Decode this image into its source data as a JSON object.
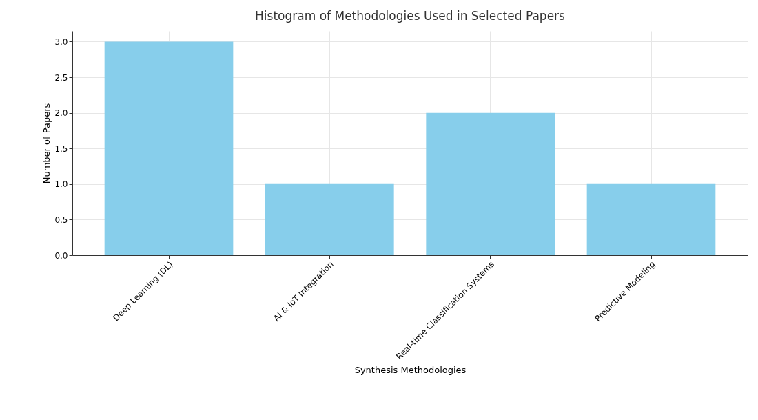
{
  "chart_data": {
    "type": "bar",
    "title": "Histogram of Methodologies Used in Selected Papers",
    "xlabel": "Synthesis Methodologies",
    "ylabel": "Number of Papers",
    "categories": [
      "Deep Learning (DL)",
      "AI & IoT Integration",
      "Real-time Classification Systems",
      "Predictive Modeling"
    ],
    "values": [
      3,
      1,
      2,
      1
    ],
    "color": "#87ceeb",
    "ylim": [
      0,
      3.15
    ],
    "yticks": [
      {
        "value": 0,
        "label": "0.0"
      },
      {
        "value": 0.5,
        "label": "0.5"
      },
      {
        "value": 1,
        "label": "1.0"
      },
      {
        "value": 1.5,
        "label": "1.5"
      },
      {
        "value": 2,
        "label": "2.0"
      },
      {
        "value": 2.5,
        "label": "2.5"
      },
      {
        "value": 3,
        "label": "3.0"
      }
    ],
    "grid": true
  }
}
